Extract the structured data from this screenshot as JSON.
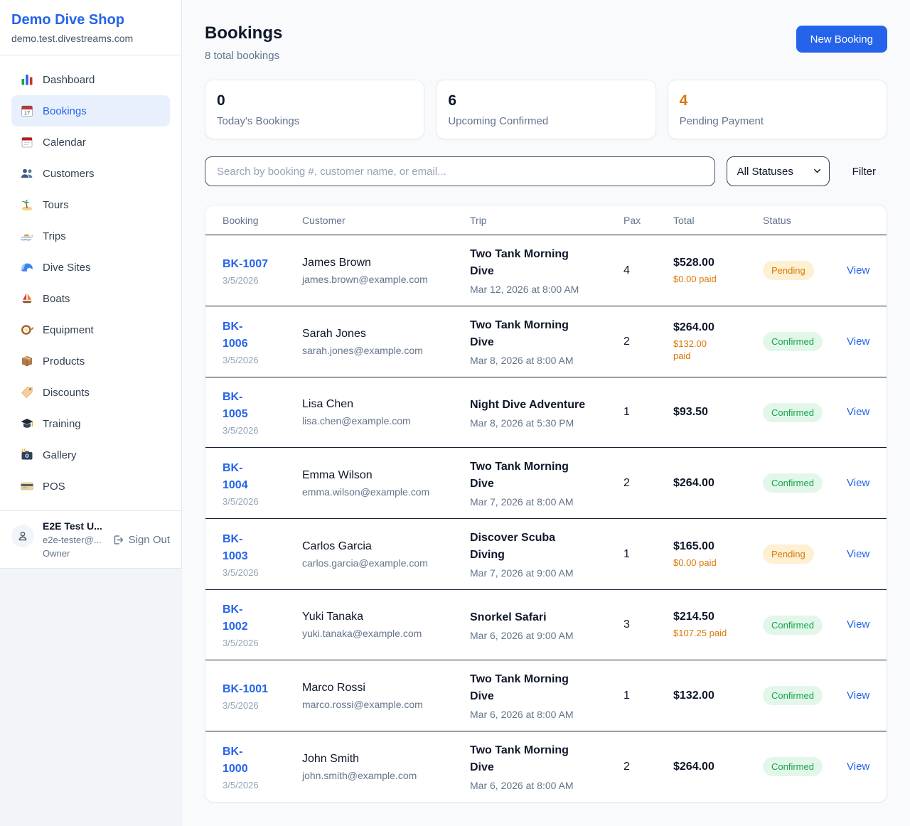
{
  "sidebar": {
    "title": "Demo Dive Shop",
    "domain": "demo.test.divestreams.com",
    "items": [
      {
        "label": "Dashboard",
        "icon": "bar-chart-icon",
        "active": false
      },
      {
        "label": "Bookings",
        "icon": "bookings-calendar-icon",
        "active": true
      },
      {
        "label": "Calendar",
        "icon": "calendar-icon",
        "active": false
      },
      {
        "label": "Customers",
        "icon": "people-icon",
        "active": false
      },
      {
        "label": "Tours",
        "icon": "island-icon",
        "active": false
      },
      {
        "label": "Trips",
        "icon": "speedboat-icon",
        "active": false
      },
      {
        "label": "Dive Sites",
        "icon": "wave-icon",
        "active": false
      },
      {
        "label": "Boats",
        "icon": "sailboat-icon",
        "active": false
      },
      {
        "label": "Equipment",
        "icon": "diving-mask-icon",
        "active": false
      },
      {
        "label": "Products",
        "icon": "package-icon",
        "active": false
      },
      {
        "label": "Discounts",
        "icon": "tag-icon",
        "active": false
      },
      {
        "label": "Training",
        "icon": "graduation-cap-icon",
        "active": false
      },
      {
        "label": "Gallery",
        "icon": "camera-icon",
        "active": false
      },
      {
        "label": "POS",
        "icon": "credit-card-icon",
        "active": false
      }
    ],
    "user": {
      "name": "E2E Test U...",
      "email": "e2e-tester@...",
      "role": "Owner",
      "sign_out_label": "Sign Out"
    }
  },
  "header": {
    "title": "Bookings",
    "subtitle": "8 total bookings",
    "new_booking_label": "New Booking"
  },
  "stats": [
    {
      "value": "0",
      "label": "Today's Bookings",
      "value_color": "#0f172a"
    },
    {
      "value": "6",
      "label": "Upcoming Confirmed",
      "value_color": "#0f172a"
    },
    {
      "value": "4",
      "label": "Pending Payment",
      "value_color": "#d97706"
    }
  ],
  "toolbar": {
    "search_placeholder": "Search by booking #, customer name, or email...",
    "status_filter_value": "All Statuses",
    "filter_label": "Filter"
  },
  "table": {
    "columns": [
      "Booking",
      "Customer",
      "Trip",
      "Pax",
      "Total",
      "Status"
    ],
    "rows": [
      {
        "id": "BK-1007",
        "id_display": "BK-1007",
        "date": "3/5/2026",
        "customer": "James Brown",
        "email": "james.brown@example.com",
        "trip": "Two Tank Morning\nDive",
        "trip_datetime": "Mar 12, 2026 at 8:00 AM",
        "pax": "4",
        "total": "$528.00",
        "paid": "$0.00 paid",
        "status": "Confirmed_or_Pending",
        "status_label": "Pending",
        "view_label": "View"
      },
      {
        "id": "BK-1006",
        "id_display": "BK-\n1006",
        "date": "3/5/2026",
        "customer": "Sarah Jones",
        "email": "sarah.jones@example.com",
        "trip": "Two Tank Morning\nDive",
        "trip_datetime": "Mar 8, 2026 at 8:00 AM",
        "pax": "2",
        "total": "$264.00",
        "paid": "$132.00\npaid",
        "status": "",
        "status_label": "Confirmed",
        "view_label": "View"
      },
      {
        "id": "BK-1005",
        "id_display": "BK-\n1005",
        "date": "3/5/2026",
        "customer": "Lisa Chen",
        "email": "lisa.chen@example.com",
        "trip": "Night Dive Adventure",
        "trip_datetime": "Mar 8, 2026 at 5:30 PM",
        "pax": "1",
        "total": "$93.50",
        "paid": "",
        "status": "",
        "status_label": "Confirmed",
        "view_label": "View"
      },
      {
        "id": "BK-1004",
        "id_display": "BK-\n1004",
        "date": "3/5/2026",
        "customer": "Emma Wilson",
        "email": "emma.wilson@example.com",
        "trip": "Two Tank Morning\nDive",
        "trip_datetime": "Mar 7, 2026 at 8:00 AM",
        "pax": "2",
        "total": "$264.00",
        "paid": "",
        "status": "",
        "status_label": "Confirmed",
        "view_label": "View"
      },
      {
        "id": "BK-1003",
        "id_display": "BK-\n1003",
        "date": "3/5/2026",
        "customer": "Carlos Garcia",
        "email": "carlos.garcia@example.com",
        "trip": "Discover Scuba\nDiving",
        "trip_datetime": "Mar 7, 2026 at 9:00 AM",
        "pax": "1",
        "total": "$165.00",
        "paid": "$0.00 paid",
        "status": "",
        "status_label": "Pending",
        "view_label": "View"
      },
      {
        "id": "BK-1002",
        "id_display": "BK-\n1002",
        "date": "3/5/2026",
        "customer": "Yuki Tanaka",
        "email": "yuki.tanaka@example.com",
        "trip": "Snorkel Safari",
        "trip_datetime": "Mar 6, 2026 at 9:00 AM",
        "pax": "3",
        "total": "$214.50",
        "paid": "$107.25 paid",
        "status": "",
        "status_label": "Confirmed",
        "view_label": "View"
      },
      {
        "id": "BK-1001",
        "id_display": "BK-1001",
        "date": "3/5/2026",
        "customer": "Marco Rossi",
        "email": "marco.rossi@example.com",
        "trip": "Two Tank Morning\nDive",
        "trip_datetime": "Mar 6, 2026 at 8:00 AM",
        "pax": "1",
        "total": "$132.00",
        "paid": "",
        "status": "",
        "status_label": "Confirmed",
        "view_label": "View"
      },
      {
        "id": "BK-1000",
        "id_display": "BK-\n1000",
        "date": "3/5/2026",
        "customer": "John Smith",
        "email": "john.smith@example.com",
        "trip": "Two Tank Morning\nDive",
        "trip_datetime": "Mar 6, 2026 at 8:00 AM",
        "pax": "2",
        "total": "$264.00",
        "paid": "",
        "status": "",
        "status_label": "Confirmed",
        "view_label": "View"
      }
    ]
  },
  "colors": {
    "accent_blue": "#2563eb",
    "pending_text": "#d97706",
    "pending_bg": "#fdf0d3",
    "confirmed_text": "#16a34a",
    "confirmed_bg": "#e2f7e9",
    "page_bg": "#f8fafc",
    "sidebar_bg": "#ffffff"
  }
}
